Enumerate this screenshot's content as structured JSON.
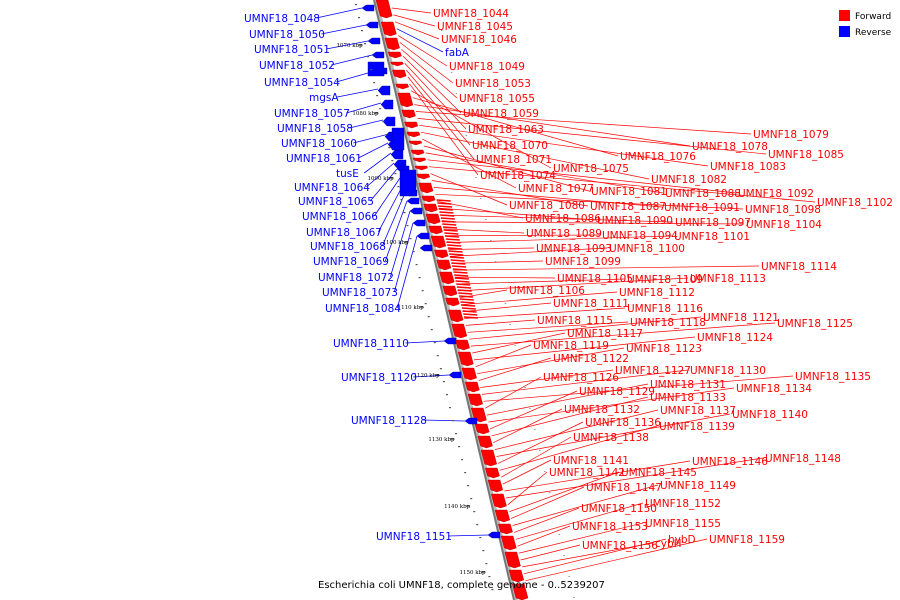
{
  "caption": "Escherichia coli UMNF18, complete genome - 0..5239207",
  "legend": [
    {
      "label": "Forward",
      "color": "#ff0000"
    },
    {
      "label": "Reverse",
      "color": "#0000ff"
    }
  ],
  "colors": {
    "forward": "#ff0000",
    "reverse": "#0000ff",
    "backbone": "#999999"
  },
  "ticks": [
    "1070 kbp",
    "1080 kbp",
    "1090 kbp",
    "1100 kbp",
    "1110 kbp",
    "1120 kbp",
    "1130 kbp",
    "1140 kbp",
    "1150 kbp"
  ],
  "reverse_labels": [
    "UMNF18_1048",
    "UMNF18_1050",
    "UMNF18_1051",
    "UMNF18_1052",
    "UMNF18_1054",
    "mgsA",
    "UMNF18_1057",
    "UMNF18_1058",
    "UMNF18_1060",
    "UMNF18_1061",
    "tusE",
    "UMNF18_1064",
    "UMNF18_1065",
    "UMNF18_1066",
    "UMNF18_1067",
    "UMNF18_1068",
    "UMNF18_1069",
    "UMNF18_1072",
    "UMNF18_1073",
    "UMNF18_1084",
    "UMNF18_1110",
    "UMNF18_1120",
    "UMNF18_1128",
    "UMNF18_1151"
  ],
  "forward_labels": [
    "UMNF18_1044",
    "UMNF18_1045",
    "UMNF18_1046",
    "fabA",
    "UMNF18_1049",
    "UMNF18_1053",
    "UMNF18_1055",
    "UMNF18_1059",
    "UMNF18_1063",
    "UMNF18_1070",
    "UMNF18_1071",
    "UMNF18_1074",
    "UMNF18_1075",
    "UMNF18_1076",
    "UMNF18_1078",
    "UMNF18_1079",
    "UMNF18_1085",
    "UMNF18_1083",
    "UMNF18_1082",
    "UMNF18_1077",
    "UMNF18_1081",
    "UMNF18_1088",
    "UMNF18_1092",
    "UMNF18_1102",
    "UMNF18_1080",
    "UMNF18_1087",
    "UMNF18_1091",
    "UMNF18_1098",
    "UMNF18_1086",
    "UMNF18_1090",
    "UMNF18_1097",
    "UMNF18_1104",
    "UMNF18_1089",
    "UMNF18_1094",
    "UMNF18_1101",
    "UMNF18_1093",
    "UMNF18_1100",
    "UMNF18_1099",
    "UMNF18_1114",
    "UMNF18_1105",
    "UMNF18_1109",
    "UMNF18_1113",
    "UMNF18_1106",
    "UMNF18_1112",
    "UMNF18_1111",
    "UMNF18_1116",
    "UMNF18_1115",
    "UMNF18_1118",
    "UMNF18_1121",
    "UMNF18_1125",
    "UMNF18_1117",
    "UMNF18_1124",
    "UMNF18_1119",
    "UMNF18_1123",
    "UMNF18_1122",
    "UMNF18_1127",
    "UMNF18_1130",
    "UMNF18_1135",
    "UMNF18_1126",
    "UMNF18_1131",
    "UMNF18_1134",
    "UMNF18_1129",
    "UMNF18_1133",
    "UMNF18_1132",
    "UMNF18_1137",
    "UMNF18_1140",
    "UMNF18_1136",
    "UMNF18_1139",
    "UMNF18_1138",
    "UMNF18_1141",
    "UMNF18_1146",
    "UMNF18_1148",
    "UMNF18_1142",
    "UMNF18_1145",
    "UMNF18_1147",
    "UMNF18_1149",
    "UMNF18_1150",
    "UMNF18_1152",
    "UMNF18_1153",
    "UMNF18_1155",
    "UMNF18_1156",
    "cybH",
    "hybD",
    "UMNF18_1159"
  ]
}
